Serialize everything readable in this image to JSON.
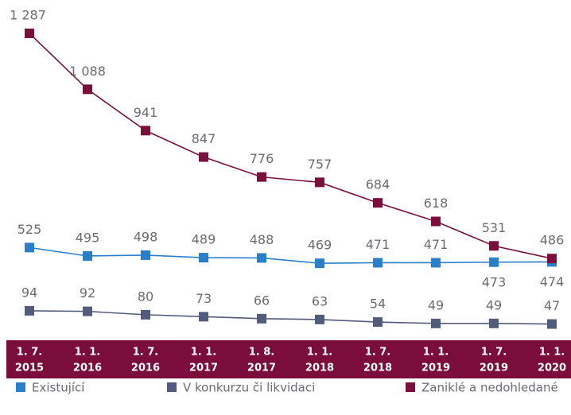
{
  "chart_data": {
    "type": "line",
    "categories": [
      [
        "1. 7.",
        "2015"
      ],
      [
        "1. 1.",
        "2016"
      ],
      [
        "1. 7.",
        "2016"
      ],
      [
        "1. 1.",
        "2017"
      ],
      [
        "1. 8.",
        "2017"
      ],
      [
        "1. 1.",
        "2018"
      ],
      [
        "1. 7.",
        "2018"
      ],
      [
        "1. 1.",
        "2019"
      ],
      [
        "1. 7.",
        "2019"
      ],
      [
        "1. 1.",
        "2020"
      ]
    ],
    "series": [
      {
        "name": "Existující",
        "color": "#2a7fc9",
        "values": [
          525,
          495,
          498,
          489,
          488,
          469,
          471,
          471,
          473,
          474
        ]
      },
      {
        "name": "V konkurzu či likvidaci",
        "color": "#525b7c",
        "axis": "y2",
        "values": [
          94,
          92,
          80,
          73,
          66,
          63,
          54,
          49,
          49,
          47
        ]
      },
      {
        "name": "Zaniklé a nedohledané",
        "color": "#7a0f3b",
        "values": [
          1287,
          1088,
          941,
          847,
          776,
          757,
          684,
          618,
          531,
          486
        ],
        "value_labels": [
          "1 287",
          "1 088",
          "941",
          "847",
          "776",
          "757",
          "684",
          "618",
          "531",
          "486"
        ]
      }
    ],
    "ylim": [
      0,
      1400
    ],
    "y2lim": [
      -206,
      1194
    ],
    "band_color": "#7a0d3b"
  }
}
